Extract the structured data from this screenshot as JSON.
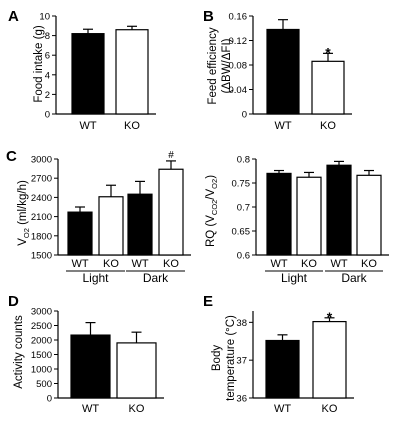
{
  "colors": {
    "wt": "#000000",
    "ko": "#ffffff",
    "stroke": "#000000"
  },
  "chart_data": [
    {
      "id": "A",
      "panel_label": "A",
      "type": "bar",
      "ylabel": "Food intake (g)",
      "ylim": [
        0,
        10
      ],
      "yticks": [
        "0",
        "2",
        "4",
        "6",
        "8",
        "10"
      ],
      "categories": [
        "WT",
        "KO"
      ],
      "values": [
        8.2,
        8.6
      ],
      "errors": [
        0.45,
        0.35
      ],
      "fills": [
        "wt",
        "ko"
      ],
      "annotations": [
        "",
        ""
      ]
    },
    {
      "id": "B",
      "panel_label": "B",
      "type": "bar",
      "ylabel": "Feed efficiency (ΔBW/ΔFI)",
      "ylim": [
        0,
        0.16
      ],
      "yticks": [
        "0",
        "0.04",
        "0.08",
        "0.12",
        "0.16"
      ],
      "categories": [
        "WT",
        "KO"
      ],
      "values": [
        0.138,
        0.086
      ],
      "errors": [
        0.016,
        0.013
      ],
      "fills": [
        "wt",
        "ko"
      ],
      "annotations": [
        "",
        "*"
      ]
    },
    {
      "id": "C1",
      "panel_label": "C",
      "type": "bar",
      "ylabel": "VO2 (ml/kg/h)",
      "ylim": [
        1500,
        3000
      ],
      "yticks": [
        "1500",
        "1800",
        "2100",
        "2400",
        "2700",
        "3000"
      ],
      "categories": [
        "WT",
        "KO",
        "WT",
        "KO"
      ],
      "groups": [
        "Light",
        "Dark"
      ],
      "values": [
        2170,
        2410,
        2450,
        2840
      ],
      "errors": [
        80,
        180,
        200,
        130
      ],
      "fills": [
        "wt",
        "ko",
        "wt",
        "ko"
      ],
      "annotations": [
        "",
        "",
        "",
        "#"
      ]
    },
    {
      "id": "C2",
      "panel_label": "",
      "type": "bar",
      "ylabel": "RQ (VCO2/VO2)",
      "ylim": [
        0.6,
        0.8
      ],
      "yticks": [
        "0.6",
        "0.65",
        "0.7",
        "0.75",
        "0.8"
      ],
      "categories": [
        "WT",
        "KO",
        "WT",
        "KO"
      ],
      "groups": [
        "Light",
        "Dark"
      ],
      "values": [
        0.77,
        0.762,
        0.787,
        0.766
      ],
      "errors": [
        0.006,
        0.01,
        0.008,
        0.01
      ],
      "fills": [
        "wt",
        "ko",
        "wt",
        "ko"
      ],
      "annotations": [
        "",
        "",
        "",
        ""
      ]
    },
    {
      "id": "D",
      "panel_label": "D",
      "type": "bar",
      "ylabel": "Activity counts",
      "ylim": [
        0,
        3000
      ],
      "yticks": [
        "0",
        "500",
        "1000",
        "1500",
        "2000",
        "2500",
        "3000"
      ],
      "categories": [
        "WT",
        "KO"
      ],
      "values": [
        2170,
        1900
      ],
      "errors": [
        430,
        370
      ],
      "fills": [
        "wt",
        "ko"
      ],
      "annotations": [
        "",
        ""
      ]
    },
    {
      "id": "E",
      "panel_label": "E",
      "type": "bar",
      "ylabel": "Body temperature (°C)",
      "ylim": [
        36,
        38.3
      ],
      "yticks": [
        "36",
        "37",
        "38"
      ],
      "categories": [
        "WT",
        "KO"
      ],
      "values": [
        37.52,
        38.02
      ],
      "errors": [
        0.15,
        0.1
      ],
      "fills": [
        "wt",
        "ko"
      ],
      "annotations": [
        "",
        "*"
      ]
    }
  ]
}
